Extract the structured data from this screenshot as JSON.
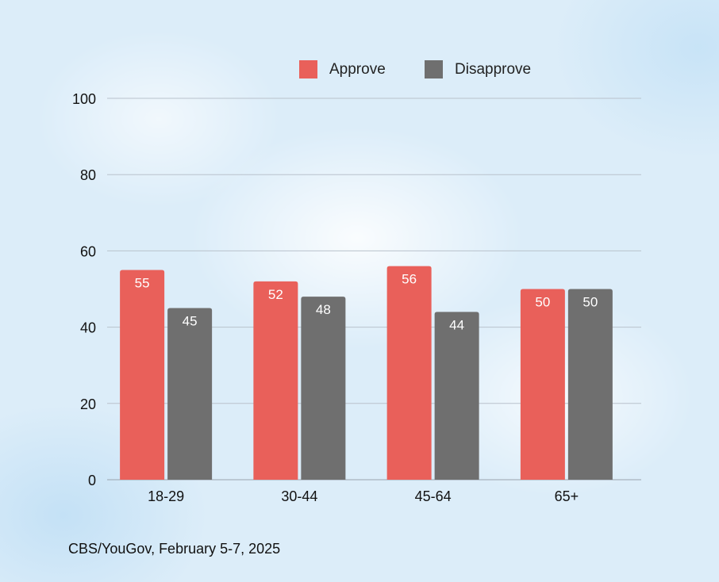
{
  "chart_data": {
    "type": "bar",
    "title": "",
    "categories": [
      "18-29",
      "30-44",
      "45-64",
      "65+"
    ],
    "series": [
      {
        "name": "Approve",
        "values": [
          55,
          52,
          56,
          50
        ],
        "color": "#e9605a"
      },
      {
        "name": "Disapprove",
        "values": [
          45,
          48,
          44,
          50
        ],
        "color": "#6f6f6f"
      }
    ],
    "yticks": [
      0,
      20,
      40,
      60,
      80,
      100
    ],
    "ylim": [
      0,
      100
    ],
    "xlabel": "",
    "ylabel": "",
    "grid": true,
    "legend_position": "top-center",
    "source": "CBS/YouGov, February 5-7, 2025"
  }
}
